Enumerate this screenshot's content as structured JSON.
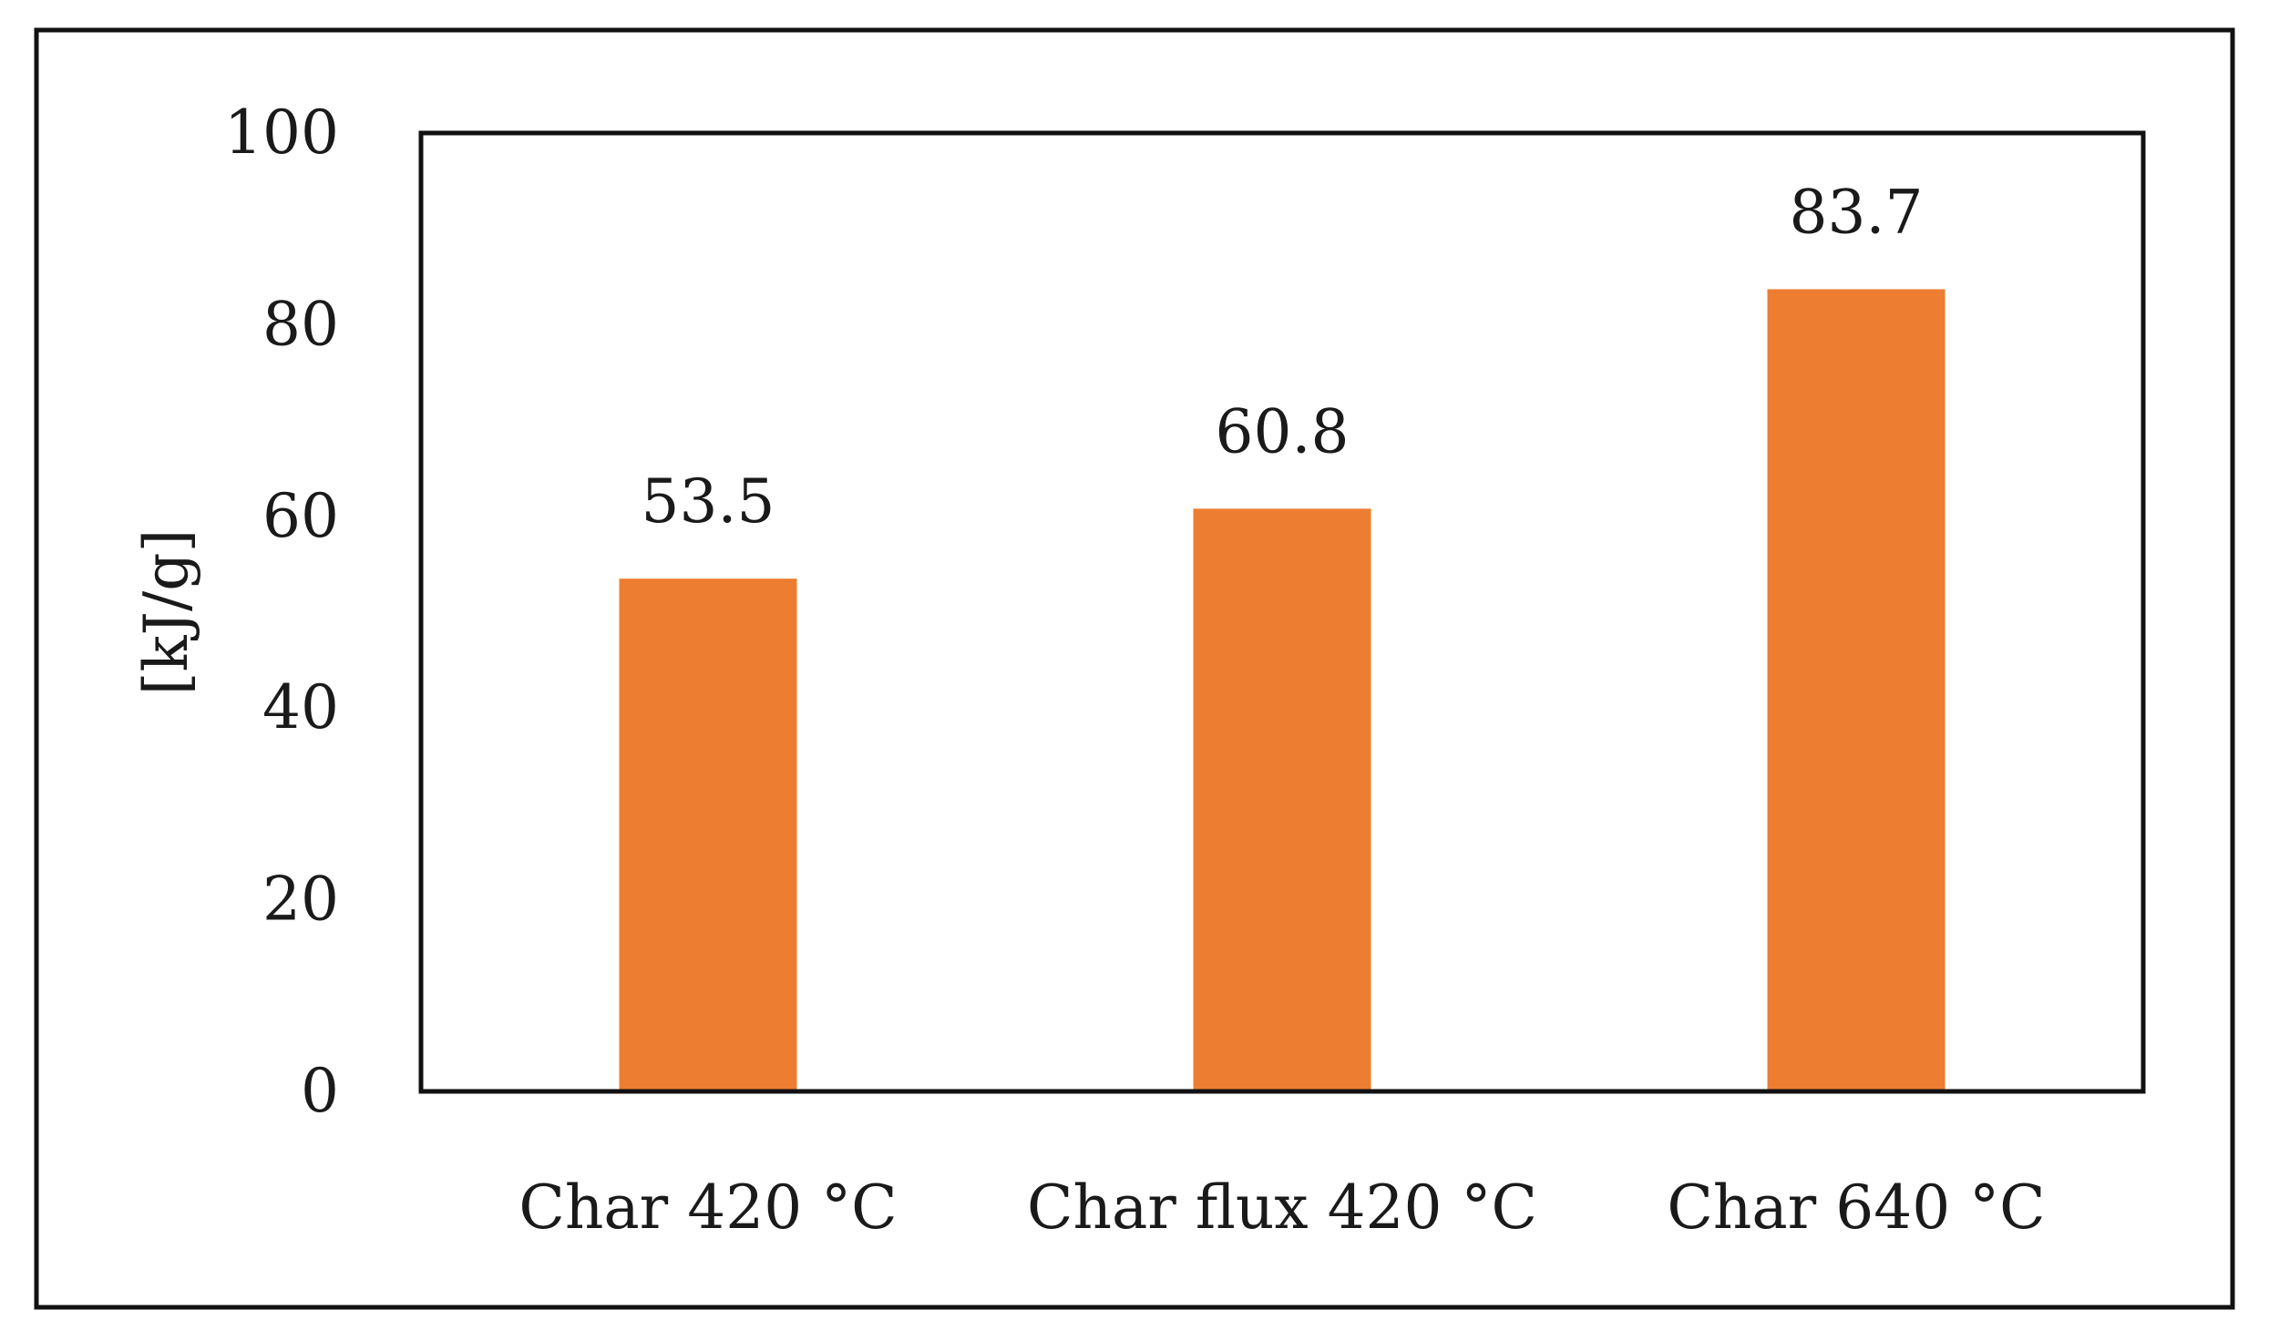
{
  "chart_data": {
    "type": "bar",
    "categories": [
      "Char 420 °C",
      "Char flux 420 °C",
      "Char 640 °C"
    ],
    "values": [
      53.5,
      60.8,
      83.7
    ],
    "data_labels": [
      "53.5",
      "60.8",
      "83.7"
    ],
    "title": "",
    "xlabel": "",
    "ylabel": "[kJ/g]",
    "ylim": [
      0,
      100
    ],
    "yticks": [
      0,
      20,
      40,
      60,
      80,
      100
    ],
    "ytick_labels": [
      "0",
      "20",
      "40",
      "60",
      "80",
      "100"
    ],
    "grid": false,
    "legend": "none",
    "bar_color": "#ED7D31"
  }
}
